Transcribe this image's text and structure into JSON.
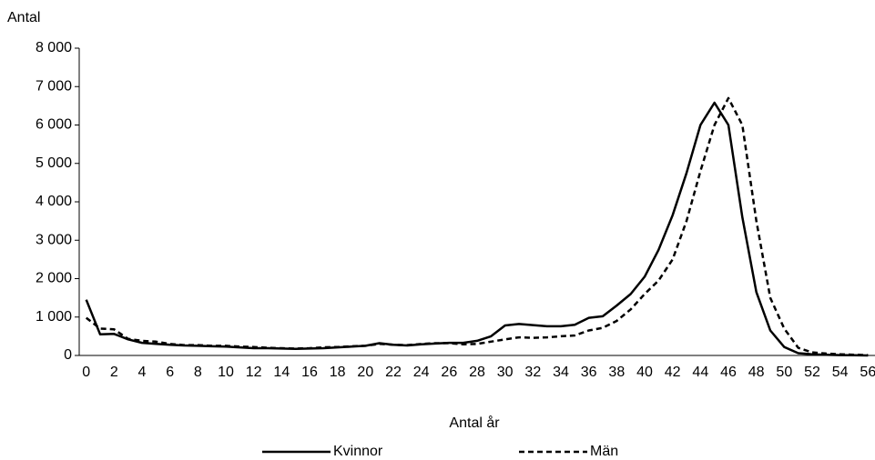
{
  "chart_data": {
    "type": "line",
    "y_label": "Antal",
    "x_label": "Antal år",
    "categories": [
      "0",
      null,
      "2",
      null,
      "4",
      null,
      "6",
      null,
      "8",
      null,
      "10",
      null,
      "12",
      null,
      "14",
      null,
      "16",
      null,
      "18",
      null,
      "20",
      null,
      "22",
      null,
      "24",
      null,
      "26",
      null,
      "28",
      null,
      "30",
      null,
      "32",
      null,
      "34",
      null,
      "36",
      null,
      "38",
      null,
      "40",
      null,
      "42",
      null,
      "44",
      null,
      "46",
      null,
      "48",
      null,
      "50",
      null,
      "52",
      null,
      "54",
      null,
      "56"
    ],
    "series": [
      {
        "name": "Kvinnor",
        "color": "#000000",
        "dash": false,
        "values": [
          1450,
          550,
          560,
          420,
          330,
          300,
          280,
          260,
          250,
          240,
          230,
          210,
          190,
          190,
          180,
          170,
          180,
          190,
          210,
          230,
          250,
          320,
          280,
          260,
          290,
          310,
          330,
          330,
          380,
          500,
          780,
          820,
          790,
          760,
          760,
          800,
          980,
          1020,
          1300,
          1600,
          2050,
          2750,
          3650,
          4750,
          6000,
          6580,
          6000,
          3600,
          1650,
          650,
          220,
          60,
          30,
          20,
          10,
          5,
          0
        ]
      },
      {
        "name": "Män",
        "color": "#000000",
        "dash": true,
        "values": [
          980,
          700,
          680,
          430,
          380,
          360,
          300,
          270,
          270,
          250,
          250,
          230,
          220,
          200,
          190,
          180,
          190,
          210,
          220,
          240,
          250,
          300,
          280,
          270,
          300,
          320,
          320,
          290,
          300,
          360,
          420,
          470,
          460,
          470,
          500,
          520,
          650,
          720,
          900,
          1200,
          1600,
          1950,
          2500,
          3500,
          4800,
          6000,
          6700,
          6000,
          3500,
          1500,
          700,
          200,
          80,
          50,
          30,
          20,
          10
        ]
      }
    ],
    "ylim": [
      0,
      8000
    ],
    "yticks": [
      0,
      {
        "value": 1000,
        "label": "1 000"
      },
      {
        "value": 2000,
        "label": "2 000"
      },
      {
        "value": 3000,
        "label": "3 000"
      },
      {
        "value": 4000,
        "label": "4 000"
      },
      {
        "value": 5000,
        "label": "5 000"
      },
      {
        "value": 6000,
        "label": "6 000"
      },
      {
        "value": 7000,
        "label": "7 000"
      },
      {
        "value": 8000,
        "label": "8 000"
      }
    ]
  }
}
